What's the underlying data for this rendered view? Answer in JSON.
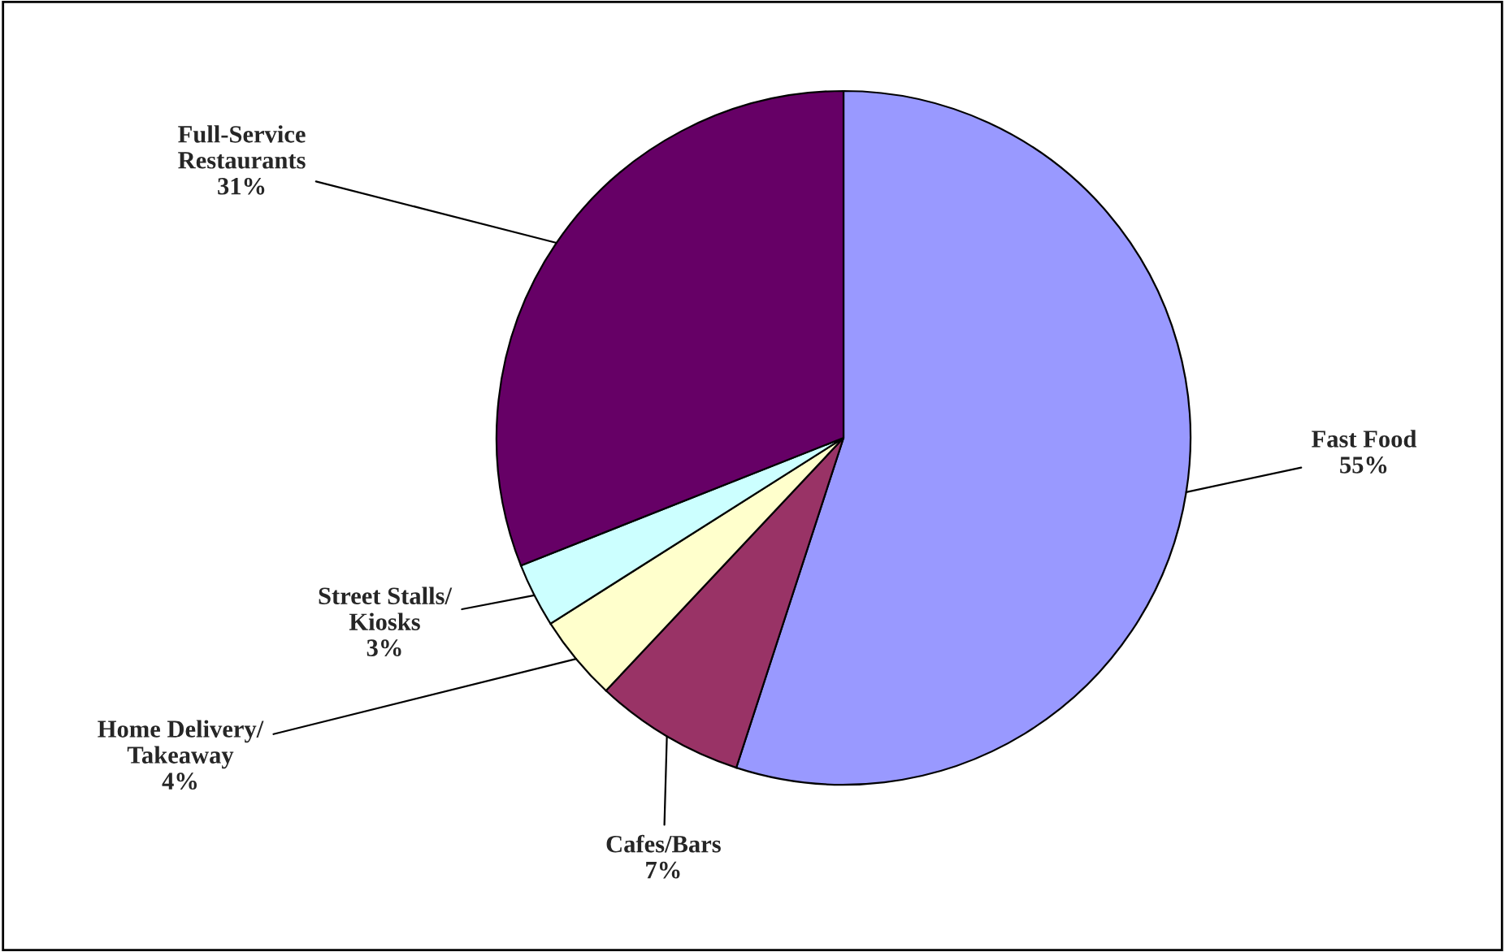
{
  "chart_data": {
    "type": "pie",
    "categories": [
      "Fast Food",
      "Cafes/Bars",
      "Home Delivery/\nTakeaway",
      "Street Stalls/\nKiosks",
      "Full-Service\nRestaurants"
    ],
    "values": [
      55,
      7,
      4,
      3,
      31
    ],
    "colors": [
      "#9999ff",
      "#993366",
      "#ffffcc",
      "#ccffff",
      "#660066"
    ],
    "value_labels": [
      "55%",
      "7%",
      "4%",
      "3%",
      "31%"
    ]
  }
}
